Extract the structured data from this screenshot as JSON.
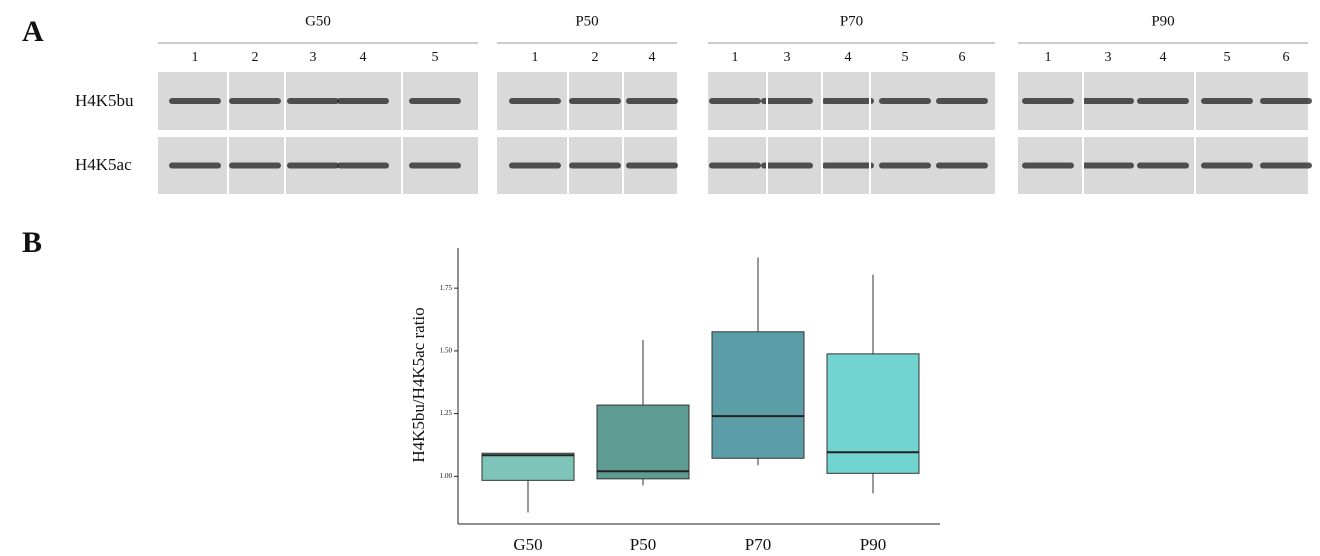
{
  "panel_a": {
    "label": "A",
    "groups": [
      {
        "name": "G50",
        "lanes": [
          "1",
          "2",
          "3",
          "4",
          "5"
        ]
      },
      {
        "name": "P50",
        "lanes": [
          "1",
          "2",
          "4"
        ]
      },
      {
        "name": "P70",
        "lanes": [
          "1",
          "3",
          "4",
          "5",
          "6"
        ]
      },
      {
        "name": "P90",
        "lanes": [
          "1",
          "3",
          "4",
          "5",
          "6"
        ]
      }
    ],
    "rows": [
      "H4K5bu",
      "H4K5ac"
    ]
  },
  "panel_b": {
    "label": "B"
  },
  "chart_data": {
    "type": "box",
    "y_label": "H4K5bu/H4K5ac ratio",
    "categories": [
      "G50",
      "P50",
      "P70",
      "P90"
    ],
    "colors": [
      "#7fc4b8",
      "#5e9b92",
      "#5b9ea8",
      "#72d4d0"
    ],
    "min": [
      0.856,
      0.964,
      1.044,
      0.932
    ],
    "q1": [
      0.984,
      0.99,
      1.072,
      1.012
    ],
    "median": [
      1.084,
      1.02,
      1.24,
      1.096
    ],
    "q3": [
      1.092,
      1.284,
      1.576,
      1.488
    ],
    "max": [
      1.092,
      1.544,
      1.872,
      1.804
    ],
    "ylim": [
      0.81,
      1.91
    ],
    "yticks": [
      {
        "value": 1,
        "label": "1.00"
      },
      {
        "value": 1.25,
        "label": "1.25"
      },
      {
        "value": 1.5,
        "label": "1.50"
      },
      {
        "value": 1.75,
        "label": "1.75"
      }
    ]
  }
}
